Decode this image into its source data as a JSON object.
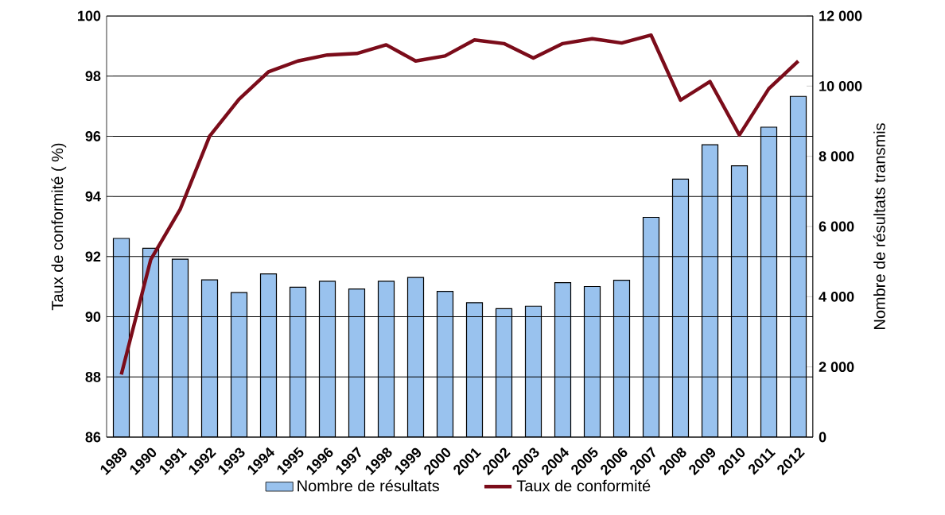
{
  "chart_data": {
    "type": "bar",
    "categories": [
      "1989",
      "1990",
      "1991",
      "1992",
      "1993",
      "1994",
      "1995",
      "1996",
      "1997",
      "1998",
      "1999",
      "2000",
      "2001",
      "2002",
      "2003",
      "2004",
      "2005",
      "2006",
      "2007",
      "2008",
      "2009",
      "2010",
      "2011",
      "2012"
    ],
    "series": [
      {
        "name": "Nombre de résultats",
        "axis": "y2",
        "color": "#99c2ee",
        "values": [
          5660,
          5380,
          5070,
          4480,
          4120,
          4650,
          4270,
          4440,
          4220,
          4440,
          4550,
          4150,
          3830,
          3660,
          3730,
          4400,
          4290,
          4470,
          6260,
          7350,
          8330,
          7730,
          8830,
          9710
        ]
      },
      {
        "name": "Taux de conformité",
        "type": "line",
        "color": "#7b0c1a",
        "values": [
          88.08,
          91.9,
          93.57,
          96.0,
          97.23,
          98.14,
          98.5,
          98.7,
          98.75,
          99.04,
          98.5,
          98.67,
          99.2,
          99.08,
          98.6,
          99.08,
          99.24,
          99.1,
          99.36,
          97.2,
          97.82,
          96.04,
          97.58,
          98.5
        ]
      }
    ],
    "ylabel": "Taux de conformité ( %)",
    "y2label": "Nombre de résultats transmis",
    "ylim": [
      86,
      100
    ],
    "yticks": [
      86,
      88,
      90,
      92,
      94,
      96,
      98,
      100
    ],
    "y2lim": [
      0,
      12000
    ],
    "y2ticks": [
      {
        "value": 0,
        "label": "0"
      },
      {
        "value": 2000,
        "label": "2 000"
      },
      {
        "value": 4000,
        "label": "4 000"
      },
      {
        "value": 6000,
        "label": "6 000"
      },
      {
        "value": 8000,
        "label": "8 000"
      },
      {
        "value": 10000,
        "label": "10 000"
      },
      {
        "value": 12000,
        "label": "12 000"
      }
    ],
    "grid": "y",
    "legend": "bottom",
    "marker": "none",
    "line_style": "solid"
  }
}
